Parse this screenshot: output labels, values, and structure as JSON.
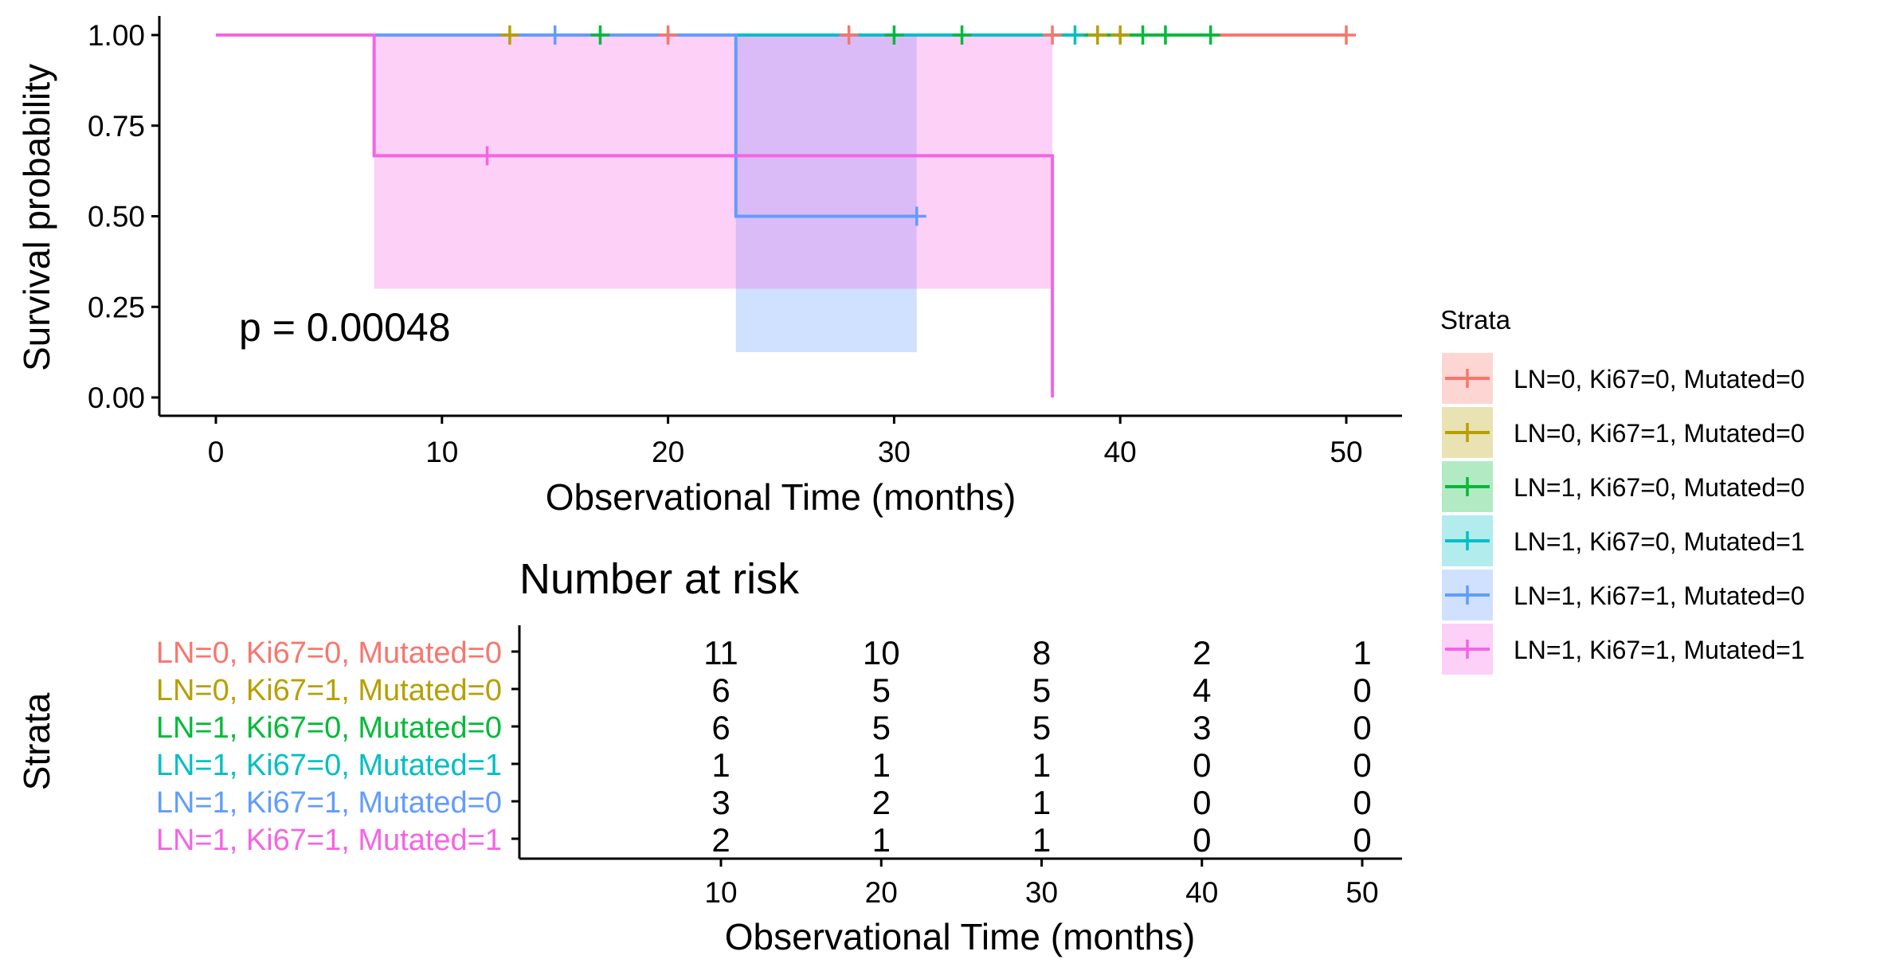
{
  "chart_data": [
    {
      "type": "line",
      "subtype": "kaplan-meier",
      "title": "",
      "xlabel": "Observational Time (months)",
      "ylabel": "Survival probability",
      "xlim": [
        0,
        52
      ],
      "ylim": [
        0,
        1
      ],
      "xticks": [
        0,
        10,
        20,
        30,
        40,
        50
      ],
      "yticks": [
        0,
        0.25,
        0.5,
        0.75,
        1
      ],
      "ytick_labels": [
        "0.00",
        "0.25",
        "0.50",
        "0.75",
        "1.00"
      ],
      "grid": false,
      "annotation": "p = 0.00048",
      "legend": {
        "title": "Strata",
        "placement": "right"
      },
      "series": [
        {
          "name": "LN=0, Ki67=0, Mutated=0",
          "color": "#F8766D",
          "steps": [
            [
              0,
              1
            ],
            [
              50,
              1
            ]
          ],
          "censored": [
            [
              20,
              1
            ],
            [
              28,
              1
            ],
            [
              37,
              1
            ],
            [
              50,
              1
            ]
          ],
          "ci": []
        },
        {
          "name": "LN=0, Ki67=1, Mutated=0",
          "color": "#B79F00",
          "steps": [
            [
              0,
              1
            ],
            [
              44,
              1
            ]
          ],
          "censored": [
            [
              13,
              1
            ],
            [
              39,
              1
            ],
            [
              40,
              1
            ]
          ],
          "ci": []
        },
        {
          "name": "LN=1, Ki67=0, Mutated=0",
          "color": "#00BA38",
          "steps": [
            [
              0,
              1
            ],
            [
              44,
              1
            ]
          ],
          "censored": [
            [
              17,
              1
            ],
            [
              30,
              1
            ],
            [
              33,
              1
            ],
            [
              41,
              1
            ],
            [
              42,
              1
            ],
            [
              44,
              1
            ]
          ],
          "ci": []
        },
        {
          "name": "LN=1, Ki67=0, Mutated=1",
          "color": "#00BFC4",
          "steps": [
            [
              0,
              1
            ],
            [
              38,
              1
            ]
          ],
          "censored": [
            [
              38,
              1
            ]
          ],
          "ci": []
        },
        {
          "name": "LN=1, Ki67=1, Mutated=0",
          "color": "#619CFF",
          "steps": [
            [
              0,
              1
            ],
            [
              23,
              1
            ],
            [
              23,
              0.5
            ],
            [
              31,
              0.5
            ]
          ],
          "censored": [
            [
              15,
              1
            ],
            [
              31,
              0.5
            ]
          ],
          "ci": [
            {
              "x0": 23,
              "x1": 31,
              "lower": 0.125,
              "upper": 1
            }
          ]
        },
        {
          "name": "LN=1, Ki67=1, Mutated=1",
          "color": "#F564E3",
          "steps": [
            [
              0,
              1
            ],
            [
              7,
              1
            ],
            [
              7,
              0.667
            ],
            [
              37,
              0.667
            ],
            [
              37,
              0
            ]
          ],
          "censored": [
            [
              12,
              0.667
            ]
          ],
          "ci": [
            {
              "x0": 7,
              "x1": 37,
              "lower": 0.3,
              "upper": 1
            }
          ]
        }
      ]
    },
    {
      "type": "table",
      "title": "Number at risk",
      "xlabel": "Observational Time (months)",
      "ylabel": "Strata",
      "xlim": [
        0,
        52
      ],
      "times": [
        10,
        20,
        30,
        40,
        50
      ],
      "xtick_labels": [
        "10",
        "20",
        "30",
        "40",
        "50"
      ],
      "rows": [
        {
          "label": "LN=0, Ki67=0, Mutated=0",
          "color": "#F8766D",
          "counts": [
            "11",
            "10",
            "8",
            "2",
            "1"
          ]
        },
        {
          "label": "LN=0, Ki67=1, Mutated=0",
          "color": "#B79F00",
          "counts": [
            "6",
            "5",
            "5",
            "4",
            "0"
          ]
        },
        {
          "label": "LN=1, Ki67=0, Mutated=0",
          "color": "#00BA38",
          "counts": [
            "6",
            "5",
            "5",
            "3",
            "0"
          ]
        },
        {
          "label": "LN=1, Ki67=0, Mutated=1",
          "color": "#00BFC4",
          "counts": [
            "1",
            "1",
            "1",
            "0",
            "0"
          ]
        },
        {
          "label": "LN=1, Ki67=1, Mutated=0",
          "color": "#619CFF",
          "counts": [
            "3",
            "2",
            "1",
            "0",
            "0"
          ]
        },
        {
          "label": "LN=1, Ki67=1, Mutated=1",
          "color": "#F564E3",
          "counts": [
            "2",
            "1",
            "1",
            "0",
            "0"
          ]
        }
      ]
    }
  ]
}
